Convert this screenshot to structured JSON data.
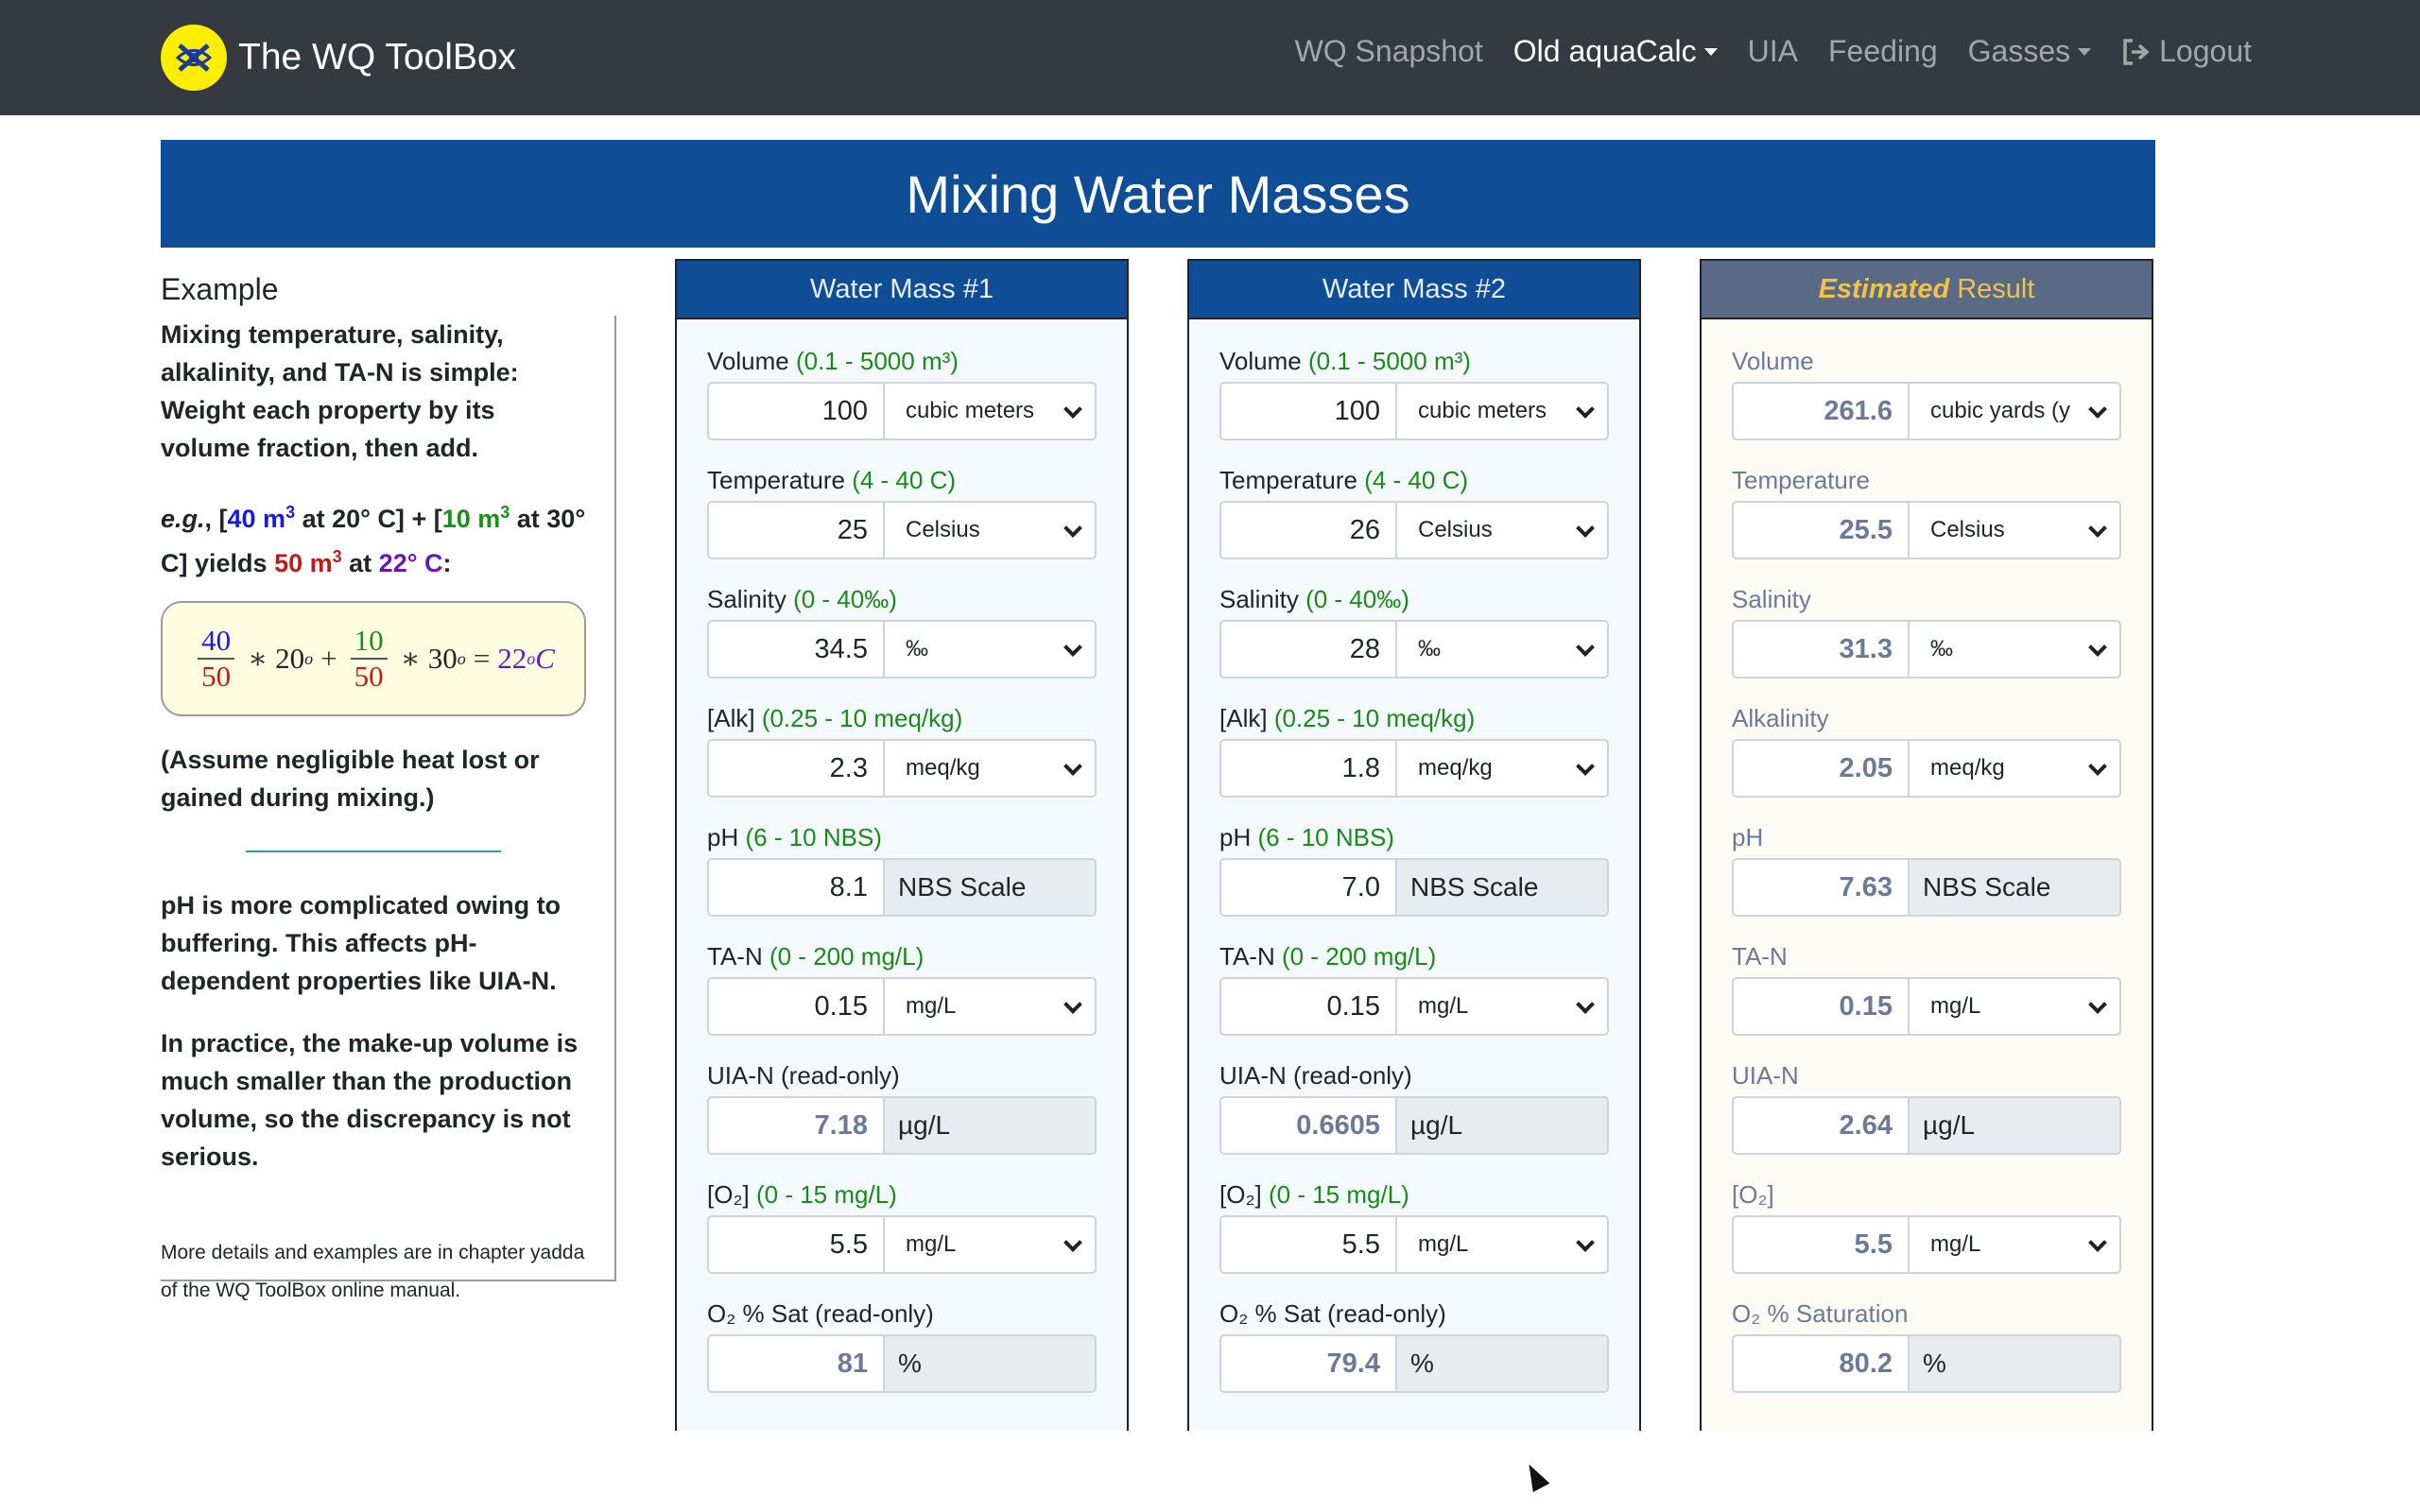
{
  "navbar": {
    "brand_title": "The WQ ToolBox",
    "items": [
      {
        "label": "WQ Snapshot"
      },
      {
        "label": "Old aquaCalc"
      },
      {
        "label": "UIA"
      },
      {
        "label": "Feeding"
      },
      {
        "label": "Gasses"
      },
      {
        "label": "Logout"
      }
    ]
  },
  "page": {
    "title": "Mixing Water Masses"
  },
  "example": {
    "heading": "Example",
    "p1": "Mixing temperature, salinity, alkalinity, and TA-N is simple: Weight each property by its volume fraction, then add.",
    "eg_prefix": "e.g.",
    "eg_v1": "40 m",
    "eg_t1": "at 20° C]",
    "eg_v2": "10 m",
    "eg_t2": "at 30° C] yields",
    "eg_v3": "50 m",
    "eg_t3": "at",
    "eg_result": "22° C",
    "formula": {
      "f1_num": "40",
      "f1_den": "50",
      "t1": "20",
      "f2_num": "10",
      "f2_den": "50",
      "t2": "30",
      "result": "22"
    },
    "p2": "(Assume negligible heat lost or gained during mixing.)",
    "p3": "pH is more complicated owing to buffering. This affects pH-dependent properties like UIA-N.",
    "p4": "In practice, the make-up volume is much smaller than the production volume, so the discrepancy is not serious.",
    "note": "More details and examples are in chapter yadda of the WQ ToolBox online manual."
  },
  "mass1": {
    "title": "Water Mass #1",
    "volume": {
      "label": "Volume",
      "range": "(0.1 - 5000 m³)",
      "value": "100",
      "unit": "cubic meters"
    },
    "temperature": {
      "label": "Temperature",
      "range": "(4 - 40 C)",
      "value": "25",
      "unit": "Celsius"
    },
    "salinity": {
      "label": "Salinity",
      "range": "(0 - 40‰)",
      "value": "34.5",
      "unit": "‰"
    },
    "alk": {
      "label": "[Alk]",
      "range": "(0.25 - 10 meq/kg)",
      "value": "2.3",
      "unit": "meq/kg"
    },
    "ph": {
      "label": "pH",
      "range": "(6 - 10 NBS)",
      "value": "8.1",
      "unit": "NBS Scale"
    },
    "tan": {
      "label": "TA-N",
      "range": "(0 - 200 mg/L)",
      "value": "0.15",
      "unit": "mg/L"
    },
    "uian": {
      "label": "UIA-N (read-only)",
      "value": "7.18",
      "unit": "µg/L"
    },
    "o2": {
      "label": "[O₂]",
      "range": "(0 - 15 mg/L)",
      "value": "5.5",
      "unit": "mg/L"
    },
    "o2sat": {
      "label": "O₂ % Sat (read-only)",
      "value": "81",
      "unit": "%"
    }
  },
  "mass2": {
    "title": "Water Mass #2",
    "volume": {
      "label": "Volume",
      "range": "(0.1 - 5000 m³)",
      "value": "100",
      "unit": "cubic meters"
    },
    "temperature": {
      "label": "Temperature",
      "range": "(4 - 40 C)",
      "value": "26",
      "unit": "Celsius"
    },
    "salinity": {
      "label": "Salinity",
      "range": "(0 - 40‰)",
      "value": "28",
      "unit": "‰"
    },
    "alk": {
      "label": "[Alk]",
      "range": "(0.25 - 10 meq/kg)",
      "value": "1.8",
      "unit": "meq/kg"
    },
    "ph": {
      "label": "pH",
      "range": "(6 - 10 NBS)",
      "value": "7.0",
      "unit": "NBS Scale"
    },
    "tan": {
      "label": "TA-N",
      "range": "(0 - 200 mg/L)",
      "value": "0.15",
      "unit": "mg/L"
    },
    "uian": {
      "label": "UIA-N (read-only)",
      "value": "0.6605",
      "unit": "µg/L"
    },
    "o2": {
      "label": "[O₂]",
      "range": "(0 - 15 mg/L)",
      "value": "5.5",
      "unit": "mg/L"
    },
    "o2sat": {
      "label": "O₂ % Sat (read-only)",
      "value": "79.4",
      "unit": "%"
    }
  },
  "result": {
    "title_em": "Estimated",
    "title_rest": "Result",
    "volume": {
      "label": "Volume",
      "value": "261.6",
      "unit": "cubic yards (y"
    },
    "temperature": {
      "label": "Temperature",
      "value": "25.5",
      "unit": "Celsius"
    },
    "salinity": {
      "label": "Salinity",
      "value": "31.3",
      "unit": "‰"
    },
    "alk": {
      "label": "Alkalinity",
      "value": "2.05",
      "unit": "meq/kg"
    },
    "ph": {
      "label": "pH",
      "value": "7.63",
      "unit": "NBS Scale"
    },
    "tan": {
      "label": "TA-N",
      "value": "0.15",
      "unit": "mg/L"
    },
    "uian": {
      "label": "UIA-N",
      "value": "2.64",
      "unit": "µg/L"
    },
    "o2": {
      "label": "[O₂]",
      "value": "5.5",
      "unit": "mg/L"
    },
    "o2sat": {
      "label": "O₂ % Saturation",
      "value": "80.2",
      "unit": "%"
    }
  }
}
